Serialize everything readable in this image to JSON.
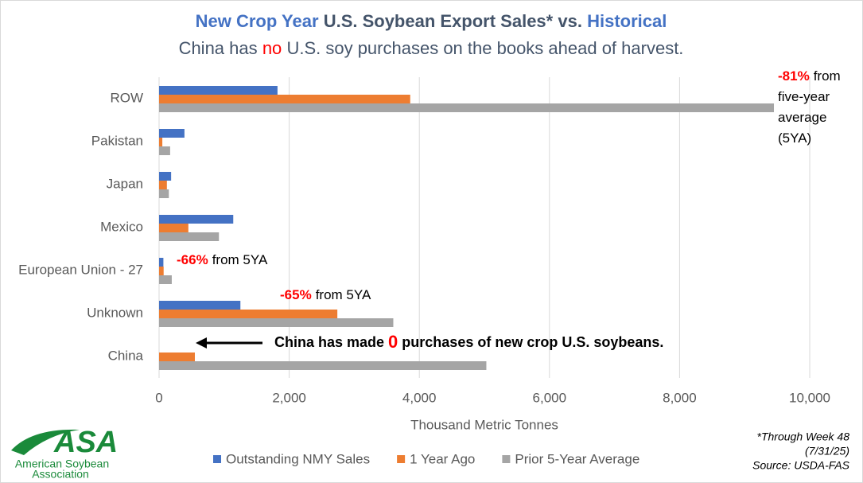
{
  "chart_data": {
    "type": "hbar",
    "title_parts": [
      {
        "text": "New Crop Year",
        "color": "#4472c4"
      },
      {
        "text": "U.S. Soybean Export Sales* vs.",
        "color": "#44546a"
      },
      {
        "text": "Historical",
        "color": "#4472c4"
      }
    ],
    "subtitle_parts": [
      {
        "text": "China has",
        "color": "#44546a"
      },
      {
        "text": "no",
        "color": "#ff0000"
      },
      {
        "text": "U.S. soy purchases on the books ahead of harvest.",
        "color": "#44546a"
      }
    ],
    "categories": [
      "ROW",
      "Pakistan",
      "Japan",
      "Mexico",
      "European Union - 27",
      "Unknown",
      "China"
    ],
    "series": [
      {
        "name": "Outstanding NMY Sales",
        "color": "#4472c4",
        "values": [
          1820,
          390,
          185,
          1140,
          66,
          1250,
          0
        ]
      },
      {
        "name": "1 Year Ago",
        "color": "#ed7d31",
        "values": [
          3860,
          50,
          120,
          450,
          70,
          2740,
          550
        ]
      },
      {
        "name": "Prior 5-Year Average",
        "color": "#a5a5a5",
        "values": [
          9450,
          170,
          150,
          920,
          195,
          3600,
          5030
        ]
      }
    ],
    "xlim": [
      0,
      10000
    ],
    "xticks": [
      0,
      {
        "value": 2000,
        "label": "2,000"
      },
      {
        "value": 4000,
        "label": "4,000"
      },
      {
        "value": 6000,
        "label": "6,000"
      },
      {
        "value": 8000,
        "label": "8,000"
      },
      {
        "value": 10000,
        "label": "10,000"
      }
    ],
    "xlabel": "Thousand Metric Tonnes",
    "grid": true,
    "legend": "bottom",
    "annotations": [
      {
        "lines": [
          [
            {
              "text": "-81%",
              "color": "#ff0000",
              "bold": true
            },
            {
              "text": "from"
            }
          ],
          [
            {
              "text": "five-year"
            }
          ],
          [
            {
              "text": "average"
            }
          ],
          [
            {
              "text": "(5YA)"
            }
          ]
        ]
      },
      {
        "lines": [
          [
            {
              "text": "-66%",
              "color": "#ff0000",
              "bold": true
            },
            {
              "text": "from 5YA"
            }
          ]
        ]
      },
      {
        "lines": [
          [
            {
              "text": "-65%",
              "color": "#ff0000",
              "bold": true
            },
            {
              "text": "from 5YA"
            }
          ]
        ]
      },
      {
        "lines": [
          [
            {
              "text": "China has made",
              "bold": true
            },
            {
              "text": "0",
              "color": "#ff0000",
              "bold": true
            },
            {
              "text": "purchases of new crop U.S. soybeans.",
              "bold": true
            }
          ]
        ]
      }
    ],
    "footnotes": [
      "*Through Week 48",
      "(7/31/25)",
      "Source: USDA-FAS"
    ],
    "logo": {
      "mark": "ASA",
      "name": [
        "American Soybean",
        "Association"
      ]
    }
  }
}
